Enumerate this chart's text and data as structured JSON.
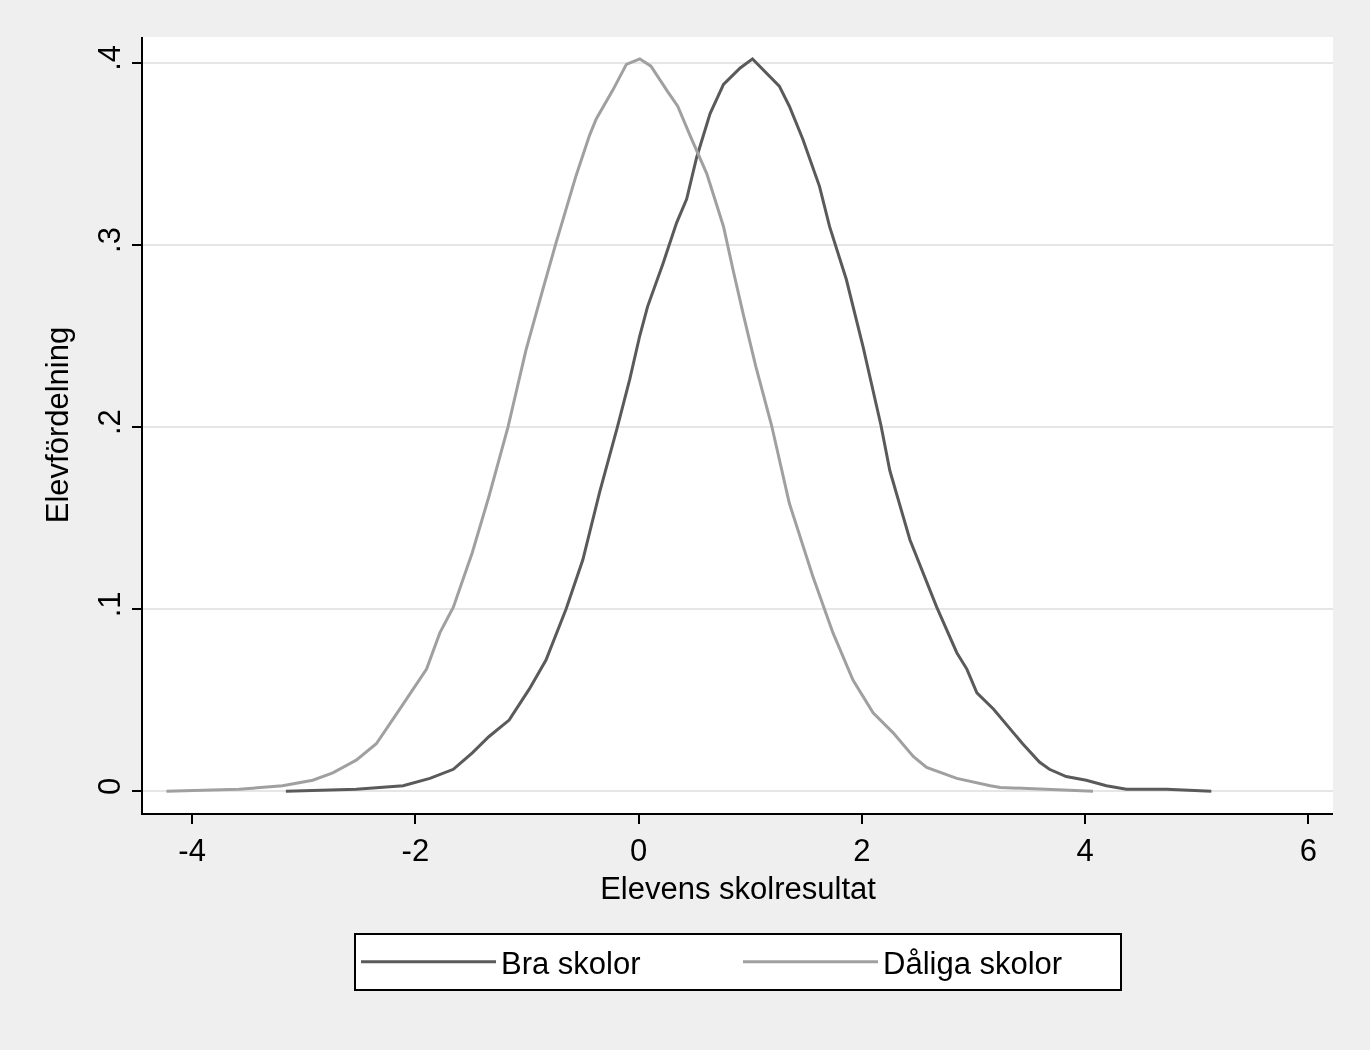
{
  "chart_data": {
    "type": "line",
    "xlabel": "Elevens skolresultat",
    "ylabel": "Elevfördelning",
    "xlim": [
      -4.44,
      6.22
    ],
    "ylim": [
      -0.012,
      0.414
    ],
    "xticks": [
      -4,
      -2,
      0,
      2,
      4,
      6
    ],
    "yticks": [
      0,
      {
        "value": 0.1,
        "label": ".1"
      },
      {
        "value": 0.2,
        "label": ".2"
      },
      {
        "value": 0.3,
        "label": ".3"
      },
      {
        "value": 0.4,
        "label": ".4"
      }
    ],
    "grid": "y",
    "legend": "bottom",
    "series": [
      {
        "name": "Bra skolor",
        "color": "#5a5a5a",
        "x": [
          -3.16,
          -2.53,
          -2.11,
          -1.87,
          -1.66,
          -1.49,
          -1.34,
          -1.16,
          -0.98,
          -0.83,
          -0.65,
          -0.5,
          -0.35,
          -0.19,
          -0.08,
          0.01,
          0.08,
          0.22,
          0.34,
          0.43,
          0.52,
          0.64,
          0.76,
          0.91,
          1.02,
          1.26,
          1.35,
          1.47,
          1.62,
          1.71,
          1.86,
          2.01,
          2.17,
          2.25,
          2.43,
          2.67,
          2.85,
          2.94,
          3.03,
          3.18,
          3.44,
          3.59,
          3.68,
          3.83,
          4.01,
          4.19,
          4.37,
          4.73,
          5.13
        ],
        "values": [
          0,
          0.001,
          0.003,
          0.007,
          0.012,
          0.021,
          0.03,
          0.039,
          0.056,
          0.072,
          0.1,
          0.127,
          0.164,
          0.2,
          0.226,
          0.25,
          0.266,
          0.29,
          0.312,
          0.325,
          0.348,
          0.372,
          0.388,
          0.397,
          0.402,
          0.387,
          0.376,
          0.358,
          0.332,
          0.31,
          0.281,
          0.244,
          0.201,
          0.176,
          0.138,
          0.101,
          0.076,
          0.067,
          0.054,
          0.045,
          0.026,
          0.016,
          0.012,
          0.008,
          0.006,
          0.003,
          0.001,
          0.001,
          0
        ]
      },
      {
        "name": "Dåliga skolor",
        "color": "#a0a0a0",
        "x": [
          -4.23,
          -3.58,
          -3.19,
          -2.92,
          -2.74,
          -2.53,
          -2.35,
          -2.14,
          -1.9,
          -1.78,
          -1.66,
          -1.49,
          -1.34,
          -1.17,
          -1.01,
          -0.86,
          -0.74,
          -0.56,
          -0.44,
          -0.38,
          -0.23,
          -0.11,
          0.01,
          0.11,
          0.26,
          0.35,
          0.46,
          0.61,
          0.76,
          0.85,
          0.94,
          1.05,
          1.19,
          1.35,
          1.56,
          1.74,
          1.92,
          2.1,
          2.28,
          2.46,
          2.58,
          2.85,
          3.15,
          3.24,
          3.65,
          4.07
        ],
        "values": [
          0,
          0.001,
          0.003,
          0.006,
          0.01,
          0.017,
          0.026,
          0.045,
          0.067,
          0.087,
          0.101,
          0.131,
          0.162,
          0.2,
          0.242,
          0.275,
          0.301,
          0.338,
          0.36,
          0.369,
          0.385,
          0.399,
          0.402,
          0.398,
          0.384,
          0.376,
          0.36,
          0.339,
          0.31,
          0.285,
          0.261,
          0.233,
          0.201,
          0.158,
          0.118,
          0.087,
          0.061,
          0.043,
          0.032,
          0.019,
          0.013,
          0.007,
          0.003,
          0.002,
          0.001,
          0
        ]
      }
    ]
  }
}
